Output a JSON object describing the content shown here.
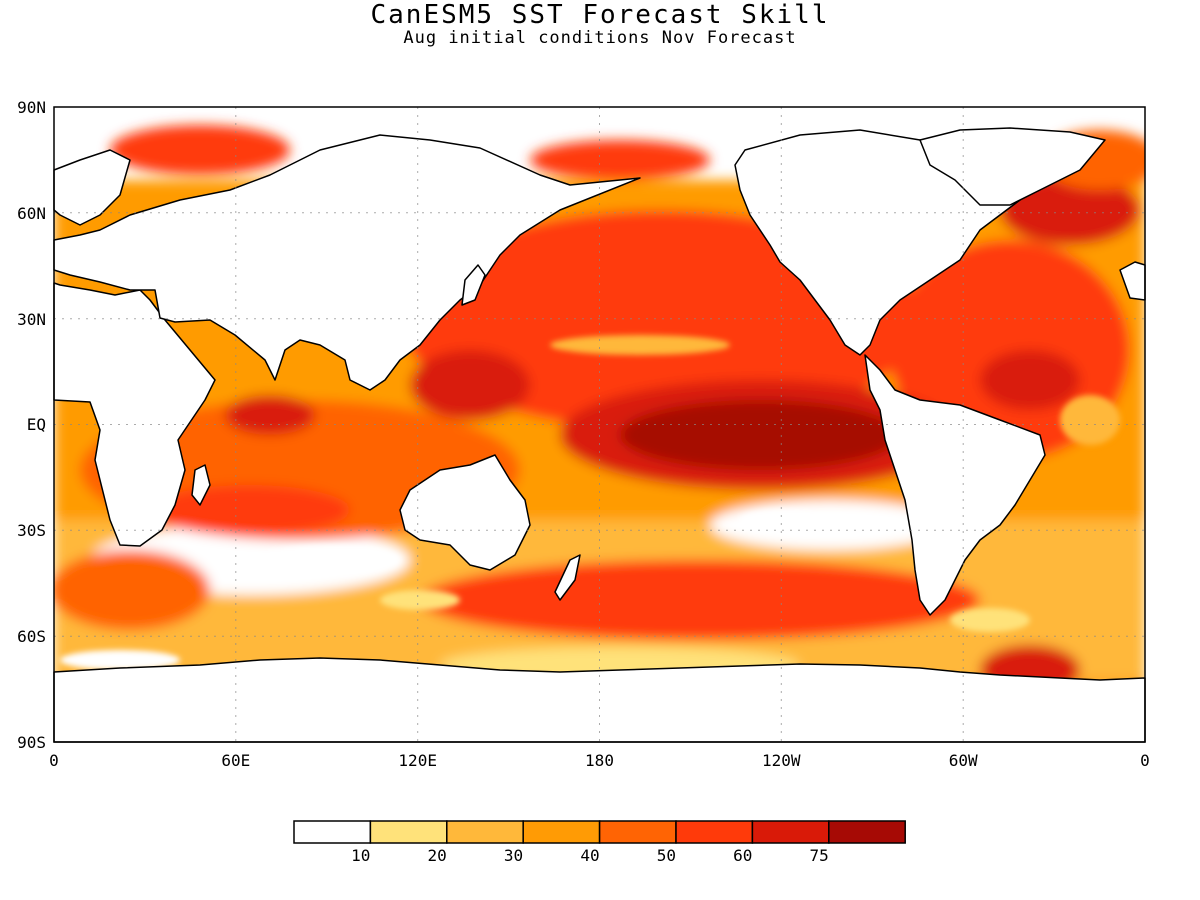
{
  "title": "CanESM5 SST Forecast Skill",
  "subtitle": "Aug initial conditions   Nov Forecast",
  "map": {
    "projection": "cylindrical-equidistant",
    "lon_range": [
      0,
      360
    ],
    "lat_range": [
      -90,
      90
    ],
    "lat_tick_labels": [
      "90N",
      "60N",
      "30N",
      "EQ",
      "30S",
      "60S",
      "90S"
    ],
    "lon_tick_labels": [
      "0",
      "60E",
      "120E",
      "180",
      "120W",
      "60W",
      "0"
    ],
    "gridlines": true,
    "background_ocean_low_skill": "#ffffff",
    "land_color": "#ffffff",
    "coastline_color": "#000000"
  },
  "colorbar": {
    "colors": [
      "#ffffff",
      "#ffe27a",
      "#ffb83a",
      "#ff9b05",
      "#ff6404",
      "#ff3a0a",
      "#d91a08",
      "#a60a05"
    ],
    "labels": [
      "10",
      "20",
      "30",
      "40",
      "50",
      "60",
      "75"
    ]
  }
}
